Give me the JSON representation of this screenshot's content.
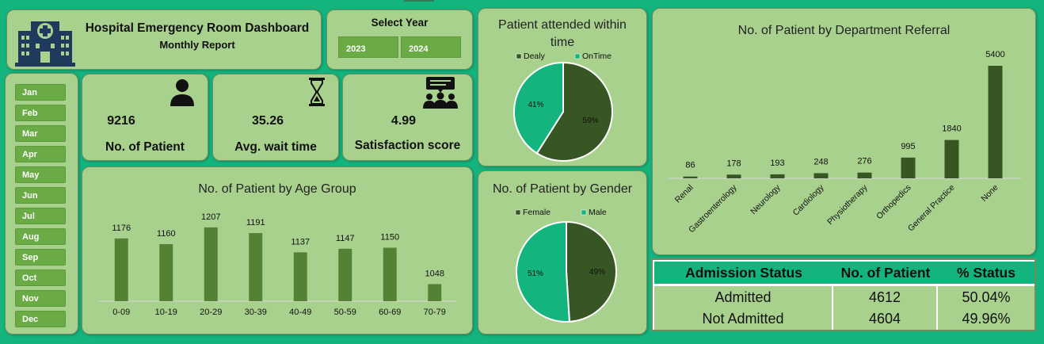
{
  "header": {
    "title": "Hospital Emergency Room Dashboard",
    "subtitle": "Monthly Report"
  },
  "year_filter": {
    "label": "Select Year",
    "years": [
      "2023",
      "2024"
    ]
  },
  "months": [
    "Jan",
    "Feb",
    "Mar",
    "Apr",
    "May",
    "Jun",
    "Jul",
    "Aug",
    "Sep",
    "Oct",
    "Nov",
    "Dec"
  ],
  "kpis": {
    "patients": {
      "value": "9216",
      "label": "No. of Patient"
    },
    "wait": {
      "value": "35.26",
      "label": "Avg. wait time"
    },
    "satisfaction": {
      "value": "4.99",
      "label": "Satisfaction score"
    }
  },
  "icons": {
    "hospital": "hospital-building-icon",
    "patient": "person-icon",
    "wait": "hourglass-icon",
    "satisfaction": "audience-feedback-icon"
  },
  "colors": {
    "background": "#14b47e",
    "card": "#a9d18e",
    "bar_age": "#548235",
    "bar_dept": "#375623",
    "pie_dark": "#375623",
    "pie_teal": "#14b47e",
    "button": "#6aab45"
  },
  "chart_data": [
    {
      "id": "age",
      "type": "bar",
      "title": "No. of Patient by Age Group",
      "categories": [
        "0-09",
        "10-19",
        "20-29",
        "30-39",
        "40-49",
        "50-59",
        "60-69",
        "70-79"
      ],
      "values": [
        1176,
        1160,
        1207,
        1191,
        1137,
        1147,
        1150,
        1048
      ],
      "ylim": [
        1000,
        1220
      ],
      "grid": false
    },
    {
      "id": "time",
      "type": "pie",
      "title": "Patient attended within time",
      "legend": [
        "Dealy",
        "OnTime"
      ],
      "values": [
        59,
        41
      ],
      "labels": [
        "59%",
        "41%"
      ],
      "legend_position": "top"
    },
    {
      "id": "gender",
      "type": "pie",
      "title": "No. of Patient by Gender",
      "legend": [
        "Female",
        "Male"
      ],
      "values": [
        49,
        51
      ],
      "labels": [
        "49%",
        "51%"
      ],
      "legend_position": "top"
    },
    {
      "id": "dept",
      "type": "bar",
      "title": "No. of Patient by Department Referral",
      "categories": [
        "Renal",
        "Gastroenterology",
        "Neurology",
        "Cardiology",
        "Physiotherapy",
        "Orthopedics",
        "General Practice",
        "None"
      ],
      "values": [
        86,
        178,
        193,
        248,
        276,
        995,
        1840,
        5400
      ],
      "ylim": [
        0,
        5400
      ],
      "grid": false
    }
  ],
  "admission": {
    "headers": [
      "Admission Status",
      "No. of Patient",
      "% Status"
    ],
    "rows": [
      [
        "Admitted",
        "4612",
        "50.04%"
      ],
      [
        "Not Admitted",
        "4604",
        "49.96%"
      ]
    ]
  }
}
